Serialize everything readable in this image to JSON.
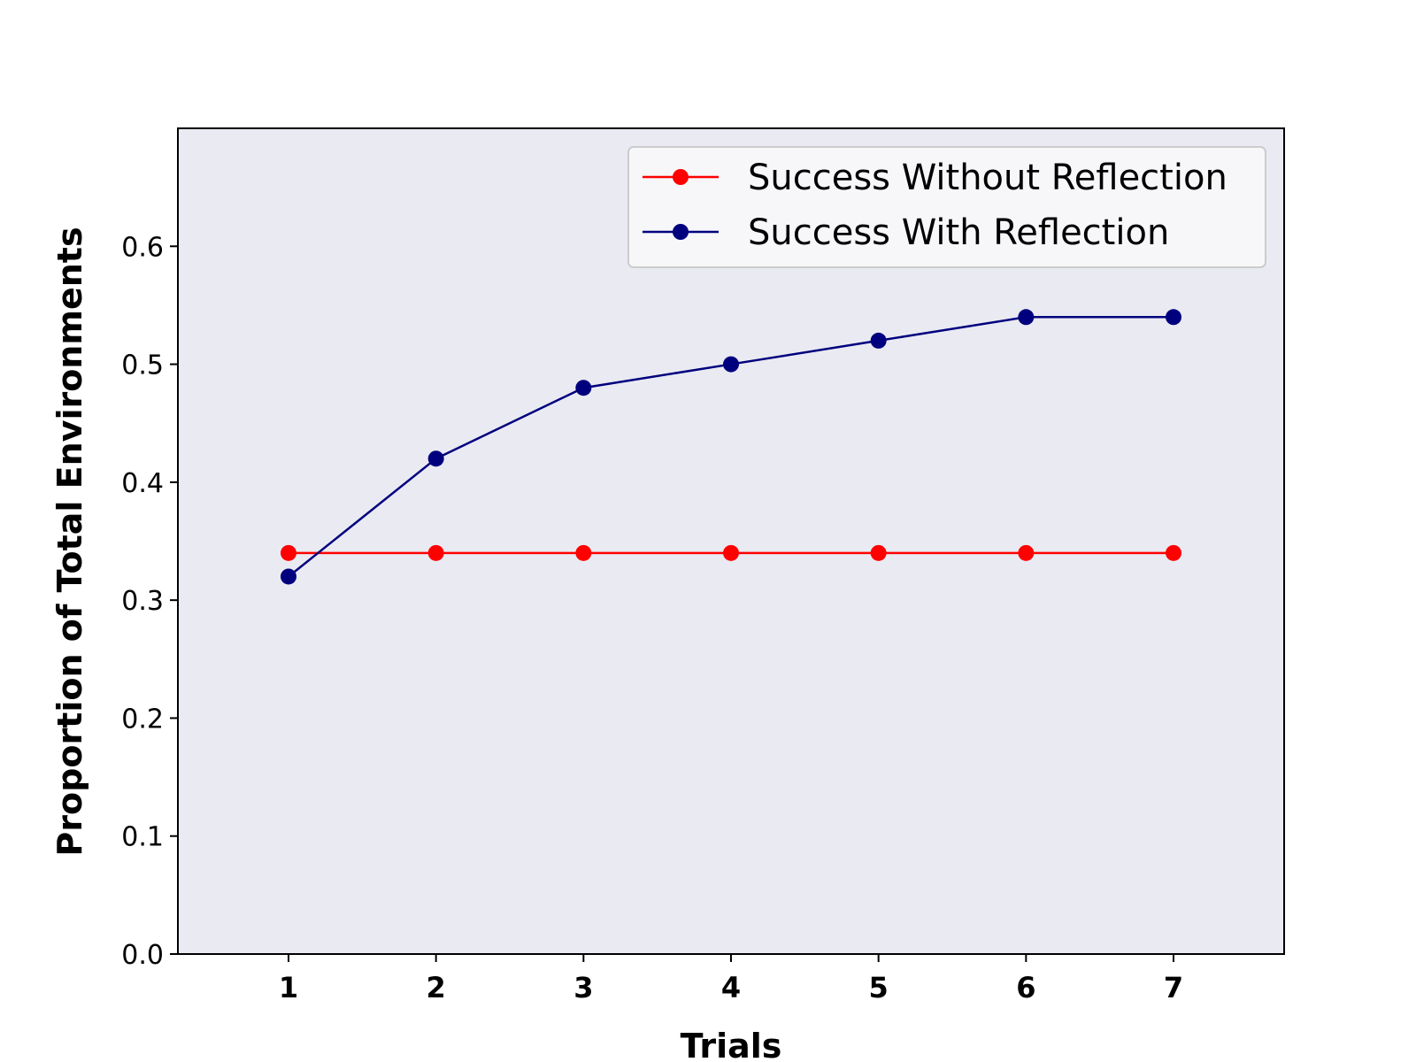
{
  "chart_data": {
    "type": "line",
    "xlabel": "Trials",
    "ylabel": "Proportion of Total Environments",
    "x": [
      1,
      2,
      3,
      4,
      5,
      6,
      7
    ],
    "xlim": [
      0.25,
      7.75
    ],
    "ylim": [
      0.0,
      0.7
    ],
    "yticks": [
      "0.0",
      "0.1",
      "0.2",
      "0.3",
      "0.4",
      "0.5",
      "0.6"
    ],
    "xticks": [
      "1",
      "2",
      "3",
      "4",
      "5",
      "6",
      "7"
    ],
    "grid": false,
    "background_color": "#eaeaf2",
    "legend_position": "top-right",
    "series": [
      {
        "name": "Success Without Reflection",
        "color": "#ff0000",
        "values": [
          0.34,
          0.34,
          0.34,
          0.34,
          0.34,
          0.34,
          0.34
        ]
      },
      {
        "name": "Success With Reflection",
        "color": "#00007f",
        "values": [
          0.32,
          0.42,
          0.48,
          0.5,
          0.52,
          0.54,
          0.54
        ]
      }
    ]
  }
}
